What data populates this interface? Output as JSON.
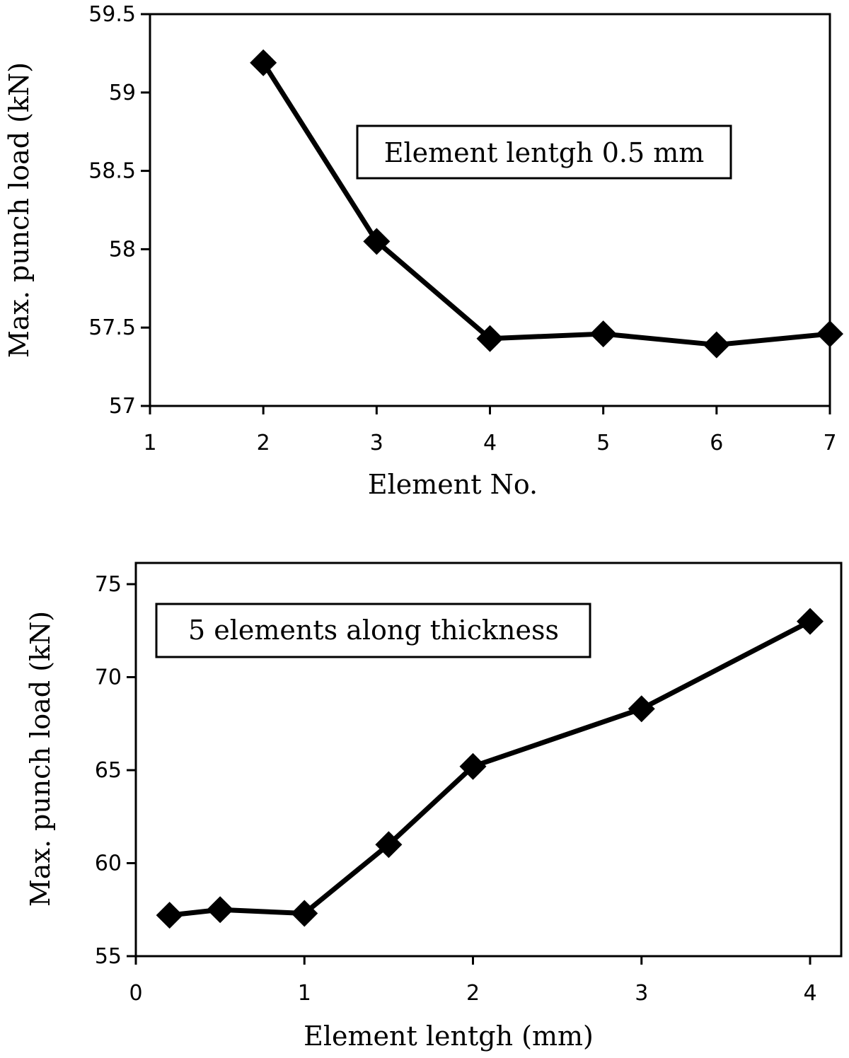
{
  "chart_data": [
    {
      "type": "line",
      "xlabel": "Element No.",
      "ylabel": "Max. punch load (kN)",
      "xlim": [
        1,
        7
      ],
      "ylim": [
        57,
        59.5
      ],
      "xticks": [
        "1",
        "2",
        "3",
        "4",
        "5",
        "6",
        "7"
      ],
      "yticks": [
        "57",
        "57.5",
        "58",
        "58.5",
        "59",
        "59.5"
      ],
      "annotation": "Element lentgh 0.5 mm",
      "grid": false,
      "marker": "diamond",
      "color": "#000000",
      "series": [
        {
          "x": [
            2,
            3,
            4,
            5,
            6,
            7
          ],
          "values": [
            59.19,
            58.05,
            57.43,
            57.46,
            57.39,
            57.46
          ]
        }
      ]
    },
    {
      "type": "line",
      "xlabel": "Element lentgh (mm)",
      "ylabel": "Max. punch load (kN)",
      "xlim": [
        0,
        4
      ],
      "ylim": [
        55,
        75
      ],
      "xticks": [
        "0",
        "1",
        "2",
        "3",
        "4"
      ],
      "yticks": [
        "55",
        "60",
        "65",
        "70",
        "75"
      ],
      "annotation": "5 elements along thickness",
      "grid": false,
      "marker": "diamond",
      "color": "#000000",
      "series": [
        {
          "x": [
            0.2,
            0.5,
            1,
            1.5,
            2,
            3,
            4
          ],
          "values": [
            57.2,
            57.5,
            57.3,
            61.0,
            65.2,
            68.3,
            73.0
          ]
        }
      ]
    }
  ]
}
